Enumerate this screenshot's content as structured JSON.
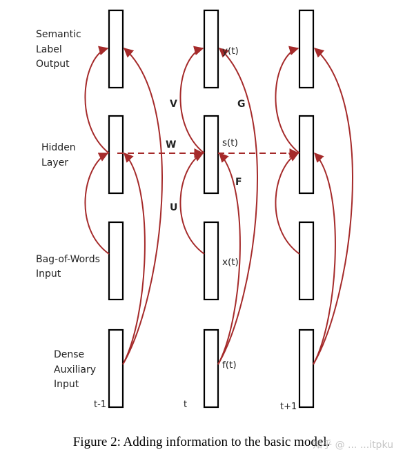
{
  "colors": {
    "arrow": "#a52a2a",
    "box": "#000000"
  },
  "row_labels": {
    "output": [
      "Semantic",
      "Label",
      "Output"
    ],
    "hidden": [
      "Hidden",
      "Layer"
    ],
    "bow": [
      "Bag-of-Words",
      "Input"
    ],
    "dense": [
      "Dense",
      "Auxiliary",
      "Input"
    ]
  },
  "node_labels": {
    "y": "y(t)",
    "s": "s(t)",
    "x": "x(t)",
    "f": "f(t)"
  },
  "matrix_labels": {
    "V": "V",
    "G": "G",
    "W": "W",
    "F": "F",
    "U": "U"
  },
  "time_labels": [
    "t-1",
    "t",
    "t+1"
  ],
  "caption": "Figure 2: Adding information to the basic model.",
  "watermark": "知乎 @ ... ...itpku"
}
